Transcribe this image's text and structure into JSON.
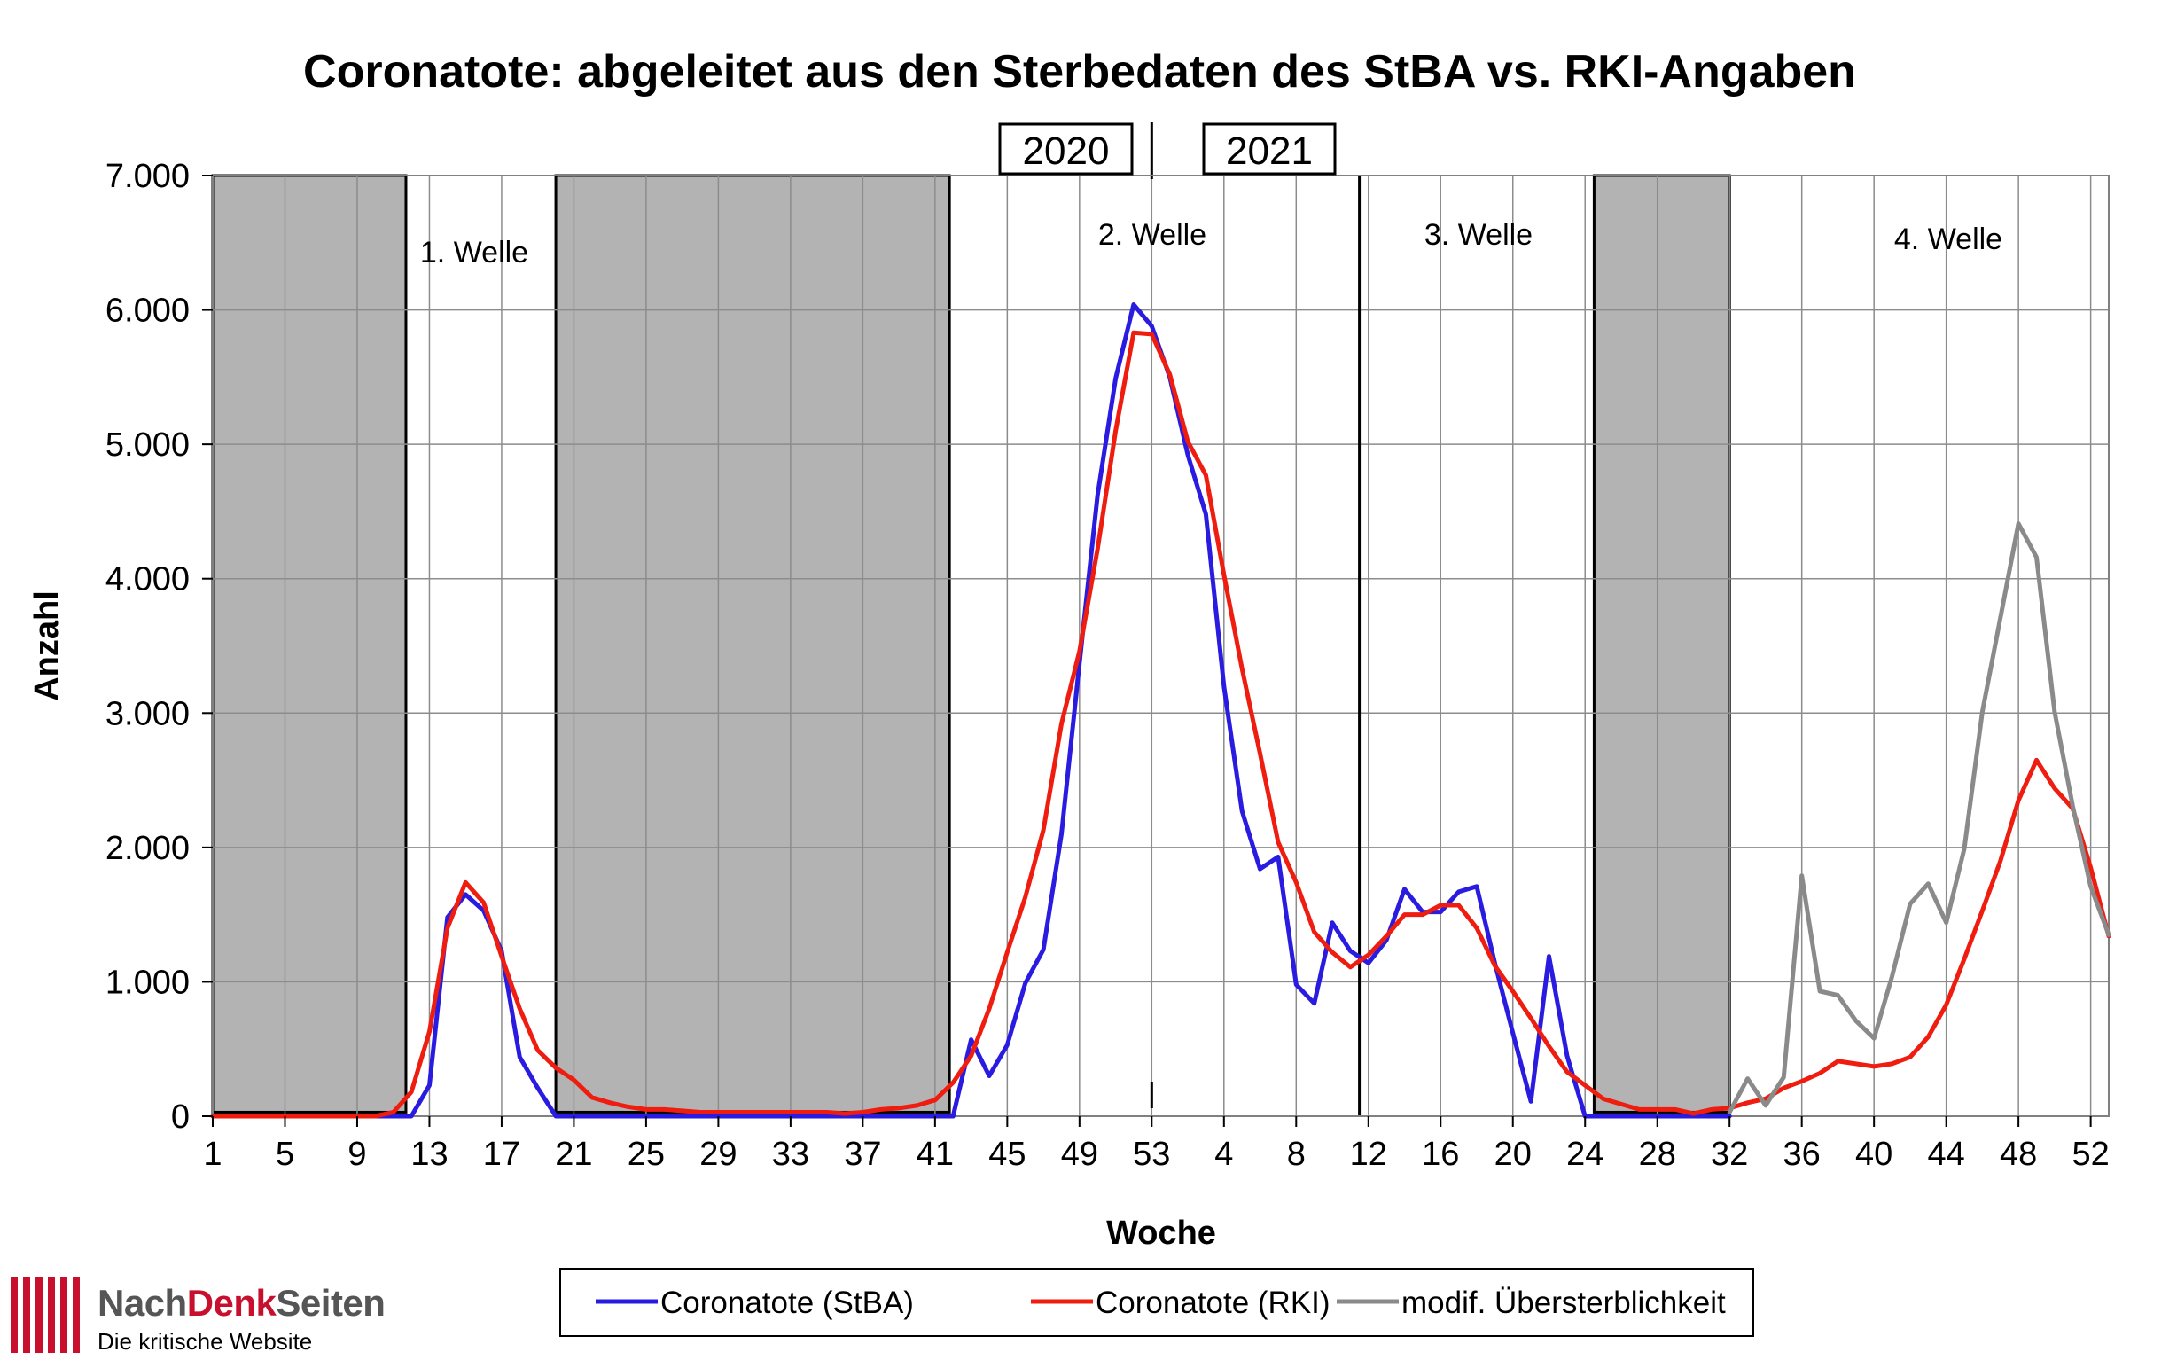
{
  "chart_data": {
    "type": "line",
    "title": "Coronatote: abgeleitet aus den Sterbedaten des StBA vs. RKI-Angaben",
    "xlabel": "Woche",
    "ylabel": "Anzahl",
    "ylim": [
      0,
      7000
    ],
    "yticks": [
      "0",
      "1.000",
      "2.000",
      "3.000",
      "4.000",
      "5.000",
      "6.000",
      "7.000"
    ],
    "xticks": [
      "1",
      "5",
      "9",
      "13",
      "17",
      "21",
      "25",
      "29",
      "33",
      "37",
      "41",
      "45",
      "49",
      "53",
      "4",
      "8",
      "12",
      "16",
      "20",
      "24",
      "28",
      "32",
      "36",
      "40",
      "44",
      "48",
      "52"
    ],
    "grid": true,
    "legend_position": "bottom",
    "year_labels": [
      "2020",
      "2021"
    ],
    "wave_labels": [
      "1. Welle",
      "2. Welle",
      "3. Welle",
      "4. Welle"
    ],
    "shaded_week_ranges": [
      [
        1,
        11.7
      ],
      [
        20,
        41.8
      ],
      [
        77.5,
        85
      ]
    ],
    "divider_weeks": [
      53,
      64.5
    ],
    "series": [
      {
        "name": "Coronatote (StBA)",
        "color": "#2a1be0",
        "x": [
          1,
          11,
          12,
          13,
          14,
          15,
          16,
          17,
          18,
          19,
          20,
          21,
          22,
          23,
          24,
          25,
          26,
          27,
          28,
          29,
          30,
          31,
          32,
          33,
          34,
          35,
          36,
          37,
          38,
          39,
          40,
          41,
          42,
          43,
          44,
          45,
          46,
          47,
          48,
          49,
          50,
          51,
          52,
          53,
          54,
          55,
          56,
          57,
          58,
          59,
          60,
          61,
          62,
          63,
          64,
          65,
          66,
          67,
          68,
          69,
          70,
          71,
          72,
          73,
          74,
          75,
          76,
          77,
          78,
          79,
          80,
          81,
          82,
          83,
          84,
          85
        ],
        "y": [
          0,
          0,
          0,
          230,
          1480,
          1650,
          1530,
          1230,
          440,
          210,
          0,
          0,
          0,
          0,
          0,
          0,
          0,
          0,
          0,
          0,
          0,
          0,
          0,
          0,
          0,
          0,
          0,
          0,
          0,
          0,
          0,
          0,
          0,
          570,
          300,
          530,
          990,
          1240,
          2100,
          3370,
          4620,
          5490,
          6040,
          5880,
          5500,
          4920,
          4480,
          3200,
          2270,
          1840,
          1930,
          980,
          840,
          1440,
          1230,
          1140,
          1310,
          1690,
          1520,
          1520,
          1670,
          1710,
          1140,
          620,
          110,
          1190,
          450,
          0,
          0,
          0,
          0,
          0,
          0,
          0,
          0,
          0
        ]
      },
      {
        "name": "Coronatote (RKI)",
        "color": "#ef1d10",
        "x": [
          1,
          10,
          11,
          12,
          13,
          14,
          15,
          16,
          17,
          18,
          19,
          20,
          21,
          22,
          23,
          24,
          25,
          26,
          27,
          28,
          29,
          30,
          31,
          32,
          33,
          34,
          35,
          36,
          37,
          38,
          39,
          40,
          41,
          42,
          43,
          44,
          45,
          46,
          47,
          48,
          49,
          50,
          51,
          52,
          53,
          54,
          55,
          56,
          57,
          58,
          59,
          60,
          61,
          62,
          63,
          64,
          65,
          66,
          67,
          68,
          69,
          70,
          71,
          72,
          73,
          74,
          75,
          76,
          77,
          78,
          79,
          80,
          81,
          82,
          83,
          84,
          85,
          86,
          87,
          88,
          89,
          90,
          91,
          92,
          93,
          94,
          95,
          96,
          97,
          98,
          99,
          100,
          101,
          102,
          103,
          104,
          105,
          106
        ],
        "y": [
          0,
          0,
          30,
          180,
          630,
          1400,
          1740,
          1590,
          1190,
          800,
          490,
          360,
          270,
          140,
          100,
          70,
          50,
          50,
          40,
          30,
          30,
          30,
          30,
          30,
          30,
          30,
          30,
          20,
          30,
          50,
          60,
          80,
          120,
          250,
          450,
          800,
          1220,
          1630,
          2130,
          2920,
          3460,
          4220,
          5100,
          5830,
          5820,
          5520,
          5020,
          4770,
          4030,
          3330,
          2700,
          2040,
          1740,
          1370,
          1220,
          1110,
          1200,
          1340,
          1500,
          1500,
          1570,
          1570,
          1400,
          1120,
          930,
          730,
          520,
          330,
          230,
          130,
          90,
          50,
          50,
          50,
          20,
          50,
          60,
          100,
          130,
          210,
          260,
          320,
          410,
          390,
          370,
          390,
          440,
          590,
          830,
          1170,
          1530,
          1900,
          2350,
          2650,
          2440,
          2290,
          1850,
          1340
        ]
      },
      {
        "name": "modif. Übersterblichkeit",
        "color": "#8a8a8a",
        "x": [
          85,
          86,
          87,
          88,
          89,
          90,
          91,
          92,
          93,
          94,
          95,
          96,
          97,
          98,
          99,
          100,
          101,
          102,
          103,
          104,
          105,
          106
        ],
        "y": [
          30,
          280,
          80,
          290,
          1790,
          930,
          900,
          710,
          580,
          1040,
          1580,
          1730,
          1440,
          1990,
          3010,
          3710,
          4410,
          4160,
          3010,
          2310,
          1710,
          1350
        ]
      }
    ]
  },
  "brand": {
    "name_part1": "Nach",
    "name_part2": "Denk",
    "name_part3": "Seiten",
    "tagline": "Die kritische Website"
  }
}
